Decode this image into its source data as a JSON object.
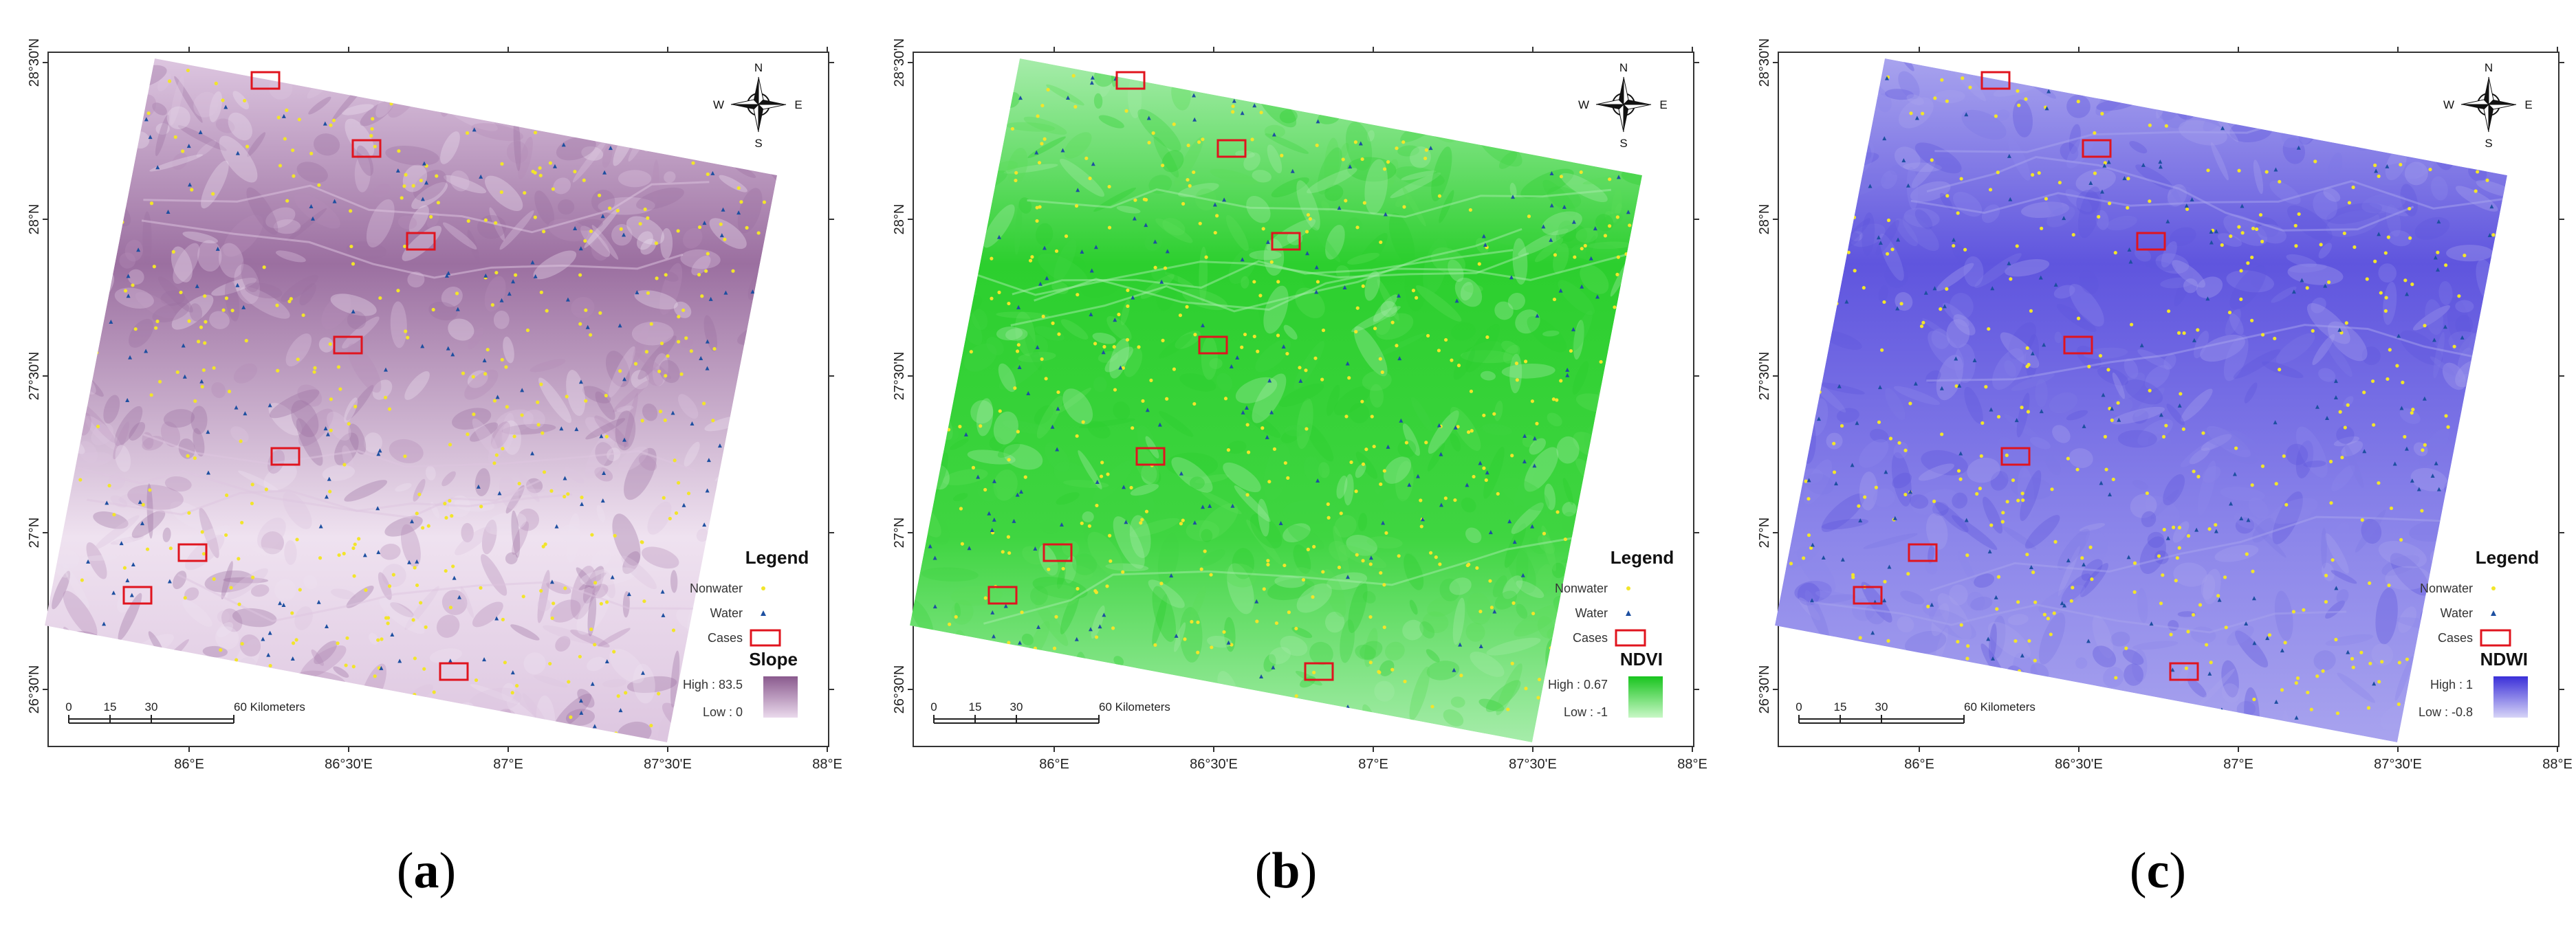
{
  "panels": [
    {
      "id": "a",
      "caption_open": "(",
      "caption_letter": "a",
      "caption_close": ")",
      "layer_title": "Slope",
      "high_label": "High : 83.5",
      "low_label": "Low : 0",
      "ramp_high": "#8a5a8e",
      "ramp_low": "#ead9ec",
      "base_colors": [
        "#9b6fa0",
        "#b58db8",
        "#ddc6e0",
        "#efe2f0"
      ]
    },
    {
      "id": "b",
      "caption_open": "(",
      "caption_letter": "b",
      "caption_close": ")",
      "layer_title": "NDVI",
      "high_label": "High : 0.67",
      "low_label": "Low : -1",
      "ramp_high": "#18c41e",
      "ramp_low": "#c8f7c6",
      "base_colors": [
        "#2ccf2e",
        "#5bdc58",
        "#a6ecaa",
        "#3fd541"
      ]
    },
    {
      "id": "c",
      "caption_open": "(",
      "caption_letter": "c",
      "caption_close": ")",
      "layer_title": "NDWI",
      "high_label": "High : 1",
      "low_label": "Low : -0.8",
      "ramp_high": "#3a2fd8",
      "ramp_low": "#d7d4f7",
      "base_colors": [
        "#5f55de",
        "#7f78e6",
        "#a8a3ee",
        "#8c86ea"
      ]
    }
  ],
  "axes": {
    "x_ticks": [
      "86°E",
      "86°30'E",
      "87°E",
      "87°30'E",
      "88°E"
    ],
    "y_ticks": [
      "28°30'N",
      "28°N",
      "27°30'N",
      "27°N",
      "26°30'N"
    ]
  },
  "legend": {
    "title": "Legend",
    "items": [
      {
        "label": "Nonwater"
      },
      {
        "label": "Water"
      },
      {
        "label": "Cases"
      }
    ]
  },
  "scale_bar": {
    "labels": [
      "0",
      "15",
      "30",
      "60 Kilometers"
    ]
  },
  "compass": {
    "n": "N",
    "s": "S",
    "e": "E",
    "w": "W"
  },
  "colors": {
    "nonwater_marker": "#f2e52a",
    "water_marker": "#1d4fa0",
    "case_box": "#e0141e",
    "frame": "#333333"
  }
}
